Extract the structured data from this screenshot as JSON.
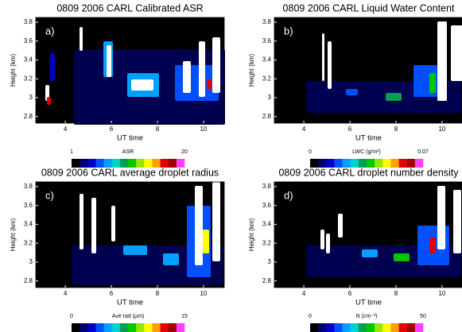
{
  "chart_data": [
    {
      "type": "heatmap",
      "title": "0809 2006 CARL Calibrated ASR",
      "panel_label": "a)",
      "xlabel": "UT time",
      "ylabel": "Height (km)",
      "xlim": [
        2.72,
        10.9
      ],
      "ylim": [
        2.73,
        3.85
      ],
      "xticks": [
        4,
        6,
        8,
        10
      ],
      "yticks": [
        2.8,
        3,
        3.2,
        3.4,
        3.6,
        3.8
      ],
      "clim": [
        1,
        20
      ],
      "colorbar_label": "ASR",
      "colormap": [
        "#000000",
        "#00006e",
        "#0000c8",
        "#0050ff",
        "#00a0ff",
        "#00d2d2",
        "#00a050",
        "#00c800",
        "#96e600",
        "#ffff00",
        "#ffa000",
        "#e60000",
        "#a00000",
        "#ff40ff"
      ]
    },
    {
      "type": "heatmap",
      "title": "0809 2006 CARL Liquid Water Content",
      "panel_label": "b)",
      "xlabel": "UT time",
      "ylabel": "Height (km)",
      "xlim": [
        2.72,
        10.9
      ],
      "ylim": [
        2.73,
        3.85
      ],
      "xticks": [
        4,
        6,
        8,
        10
      ],
      "yticks": [
        2.8,
        3,
        3.2,
        3.4,
        3.6,
        3.8
      ],
      "clim": [
        0,
        0.07
      ],
      "colorbar_label": "LWC (g/m³)",
      "colormap": [
        "#000000",
        "#00006e",
        "#0000c8",
        "#0050ff",
        "#00a0ff",
        "#00d2d2",
        "#00a050",
        "#00c800",
        "#96e600",
        "#ffff00",
        "#ffa000",
        "#e60000",
        "#a00000",
        "#ff40ff"
      ]
    },
    {
      "type": "heatmap",
      "title": "0809 2006 CARL average droplet radius",
      "panel_label": "c)",
      "xlabel": "UT time",
      "ylabel": "Height (km)",
      "xlim": [
        2.72,
        10.9
      ],
      "ylim": [
        2.73,
        3.85
      ],
      "xticks": [
        4,
        6,
        8,
        10
      ],
      "yticks": [
        2.8,
        3,
        3.2,
        3.4,
        3.6,
        3.8
      ],
      "clim": [
        0,
        15
      ],
      "colorbar_label": "Ave rad (μm)",
      "colormap": [
        "#000000",
        "#00006e",
        "#0000c8",
        "#0050ff",
        "#00a0ff",
        "#00d2d2",
        "#00a050",
        "#00c800",
        "#96e600",
        "#ffff00",
        "#ffa000",
        "#e60000",
        "#a00000",
        "#ff40ff"
      ]
    },
    {
      "type": "heatmap",
      "title": "0809 2006 CARL droplet number density",
      "panel_label": "d)",
      "xlabel": "UT time",
      "ylabel": "Height (km)",
      "xlim": [
        2.72,
        10.9
      ],
      "ylim": [
        2.73,
        3.85
      ],
      "xticks": [
        4,
        6,
        8,
        10
      ],
      "yticks": [
        2.8,
        3,
        3.2,
        3.4,
        3.6,
        3.8
      ],
      "clim": [
        0,
        50
      ],
      "colorbar_label": "N (cm⁻³)",
      "colormap": [
        "#000000",
        "#00006e",
        "#0000c8",
        "#0050ff",
        "#00a0ff",
        "#00d2d2",
        "#00a050",
        "#00c800",
        "#96e600",
        "#ffff00",
        "#ffa000",
        "#e60000",
        "#a00000",
        "#ff40ff"
      ]
    }
  ]
}
